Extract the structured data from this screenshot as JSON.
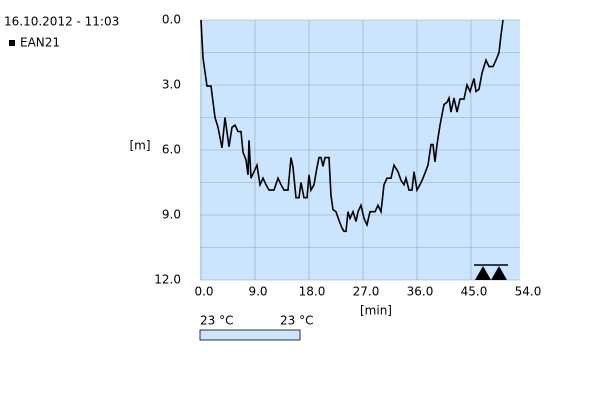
{
  "chart_data": {
    "type": "line",
    "legend_title": "16.10.2012 - 11:03",
    "xlabel": "[min]",
    "ylabel": "[m]",
    "xlim": [
      0,
      54
    ],
    "ylim": [
      0,
      12
    ],
    "y_inverted": true,
    "xticks": [
      {
        "value": 0,
        "label": "0.0"
      },
      {
        "value": 9,
        "label": "9.0"
      },
      {
        "value": 18,
        "label": "18.0"
      },
      {
        "value": 27,
        "label": "27.0"
      },
      {
        "value": 36,
        "label": "36.0"
      },
      {
        "value": 45,
        "label": "45.0"
      },
      {
        "value": 54,
        "label": "54.0"
      }
    ],
    "yticks": [
      {
        "value": 0,
        "label": "0.0"
      },
      {
        "value": 3,
        "label": "3.0"
      },
      {
        "value": 6,
        "label": "6.0"
      },
      {
        "value": 9,
        "label": "9.0"
      },
      {
        "value": 12,
        "label": "12.0"
      }
    ],
    "ygrid": [
      1.5,
      4.5,
      7.5,
      10.5
    ],
    "background": "#cce5ff",
    "temperature_labels": [
      "23 °C",
      "23 °C"
    ],
    "x": [
      0,
      0.33,
      1,
      1.67,
      2.33,
      2.83,
      3.5,
      4,
      4.67,
      5.17,
      5.67,
      6.17,
      6.67,
      7,
      7.5,
      7.83,
      8,
      8.33,
      8.83,
      9.33,
      9.83,
      10.33,
      10.83,
      11.33,
      12.17,
      12.83,
      13.33,
      13.83,
      14.5,
      15,
      15.33,
      15.83,
      16.33,
      16.67,
      17.17,
      17.67,
      18,
      18.33,
      18.83,
      19.33,
      19.67,
      20,
      20.33,
      20.67,
      21.33,
      21.67,
      22,
      22.5,
      23,
      23.5,
      23.83,
      24.17,
      24.5,
      24.83,
      25.33,
      25.83,
      26.17,
      26.67,
      27.17,
      27.67,
      28.17,
      29,
      29.5,
      30,
      30.5,
      31,
      31.67,
      32.17,
      32.83,
      33.33,
      33.83,
      34.17,
      34.67,
      35.17,
      35.5,
      36,
      36.5,
      37,
      37.83,
      38.33,
      38.67,
      39,
      39.33,
      39.83,
      40.5,
      41,
      41.33,
      41.67,
      42.17,
      42.67,
      43.17,
      43.83,
      44.33,
      44.83,
      45.5,
      45.83,
      46.33,
      46.83,
      47.5,
      48,
      48.67,
      49.17,
      49.67,
      50,
      50.33
    ],
    "series": [
      {
        "name": "EAN21",
        "color": "#000000",
        "values": [
          0,
          1.75,
          3.05,
          3.05,
          4.5,
          4.95,
          5.9,
          4.5,
          5.85,
          4.95,
          4.85,
          5.15,
          5.15,
          6.1,
          6.45,
          7.15,
          5.55,
          7.3,
          7.0,
          6.7,
          7.6,
          7.3,
          7.6,
          7.85,
          7.85,
          7.3,
          7.6,
          7.85,
          7.85,
          6.35,
          6.8,
          8.2,
          8.2,
          7.5,
          8.2,
          8.2,
          7.15,
          7.85,
          7.6,
          6.8,
          6.35,
          6.35,
          6.75,
          6.35,
          6.35,
          8.1,
          8.75,
          8.85,
          9.25,
          9.6,
          9.75,
          9.75,
          8.85,
          9.15,
          8.85,
          9.3,
          8.85,
          8.55,
          9.15,
          9.45,
          8.85,
          8.85,
          8.55,
          8.85,
          7.6,
          7.3,
          7.3,
          6.7,
          7.0,
          7.4,
          7.6,
          7.3,
          7.85,
          7.85,
          7.0,
          7.85,
          7.6,
          7.3,
          6.7,
          5.75,
          5.75,
          6.55,
          5.75,
          4.85,
          3.9,
          3.8,
          3.6,
          4.25,
          3.6,
          4.25,
          3.65,
          3.65,
          3.0,
          3.3,
          2.7,
          3.3,
          3.2,
          2.45,
          1.85,
          2.15,
          2.15,
          1.85,
          1.5,
          0.7,
          0
        ]
      }
    ]
  }
}
